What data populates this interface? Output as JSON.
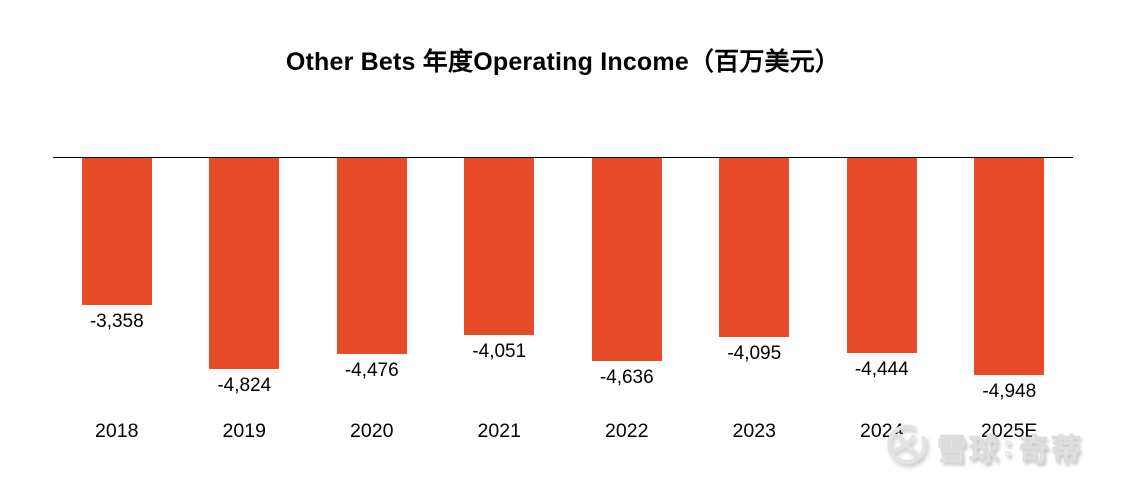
{
  "chart_data": {
    "type": "bar",
    "title": "Other Bets 年度Operating Income（百万美元）",
    "categories": [
      "2018",
      "2019",
      "2020",
      "2021",
      "2022",
      "2023",
      "2024",
      "2025E"
    ],
    "values": [
      -3358,
      -4824,
      -4476,
      -4051,
      -4636,
      -4095,
      -4444,
      -4948
    ],
    "value_labels": [
      "-3,358",
      "-4,824",
      "-4,476",
      "-4,051",
      "-4,636",
      "-4,095",
      "-4,444",
      "-4,948"
    ],
    "xlabel": "",
    "ylabel": "",
    "ylim": [
      -5000,
      0
    ],
    "grid": false,
    "legend": "none",
    "value_label_position": "below_bar",
    "bar_color": "#e84b27",
    "baseline_color": "#000000",
    "text_color": "#000000"
  },
  "watermark": {
    "brand": "雪球",
    "separator": ":",
    "user": "奇蒂"
  }
}
